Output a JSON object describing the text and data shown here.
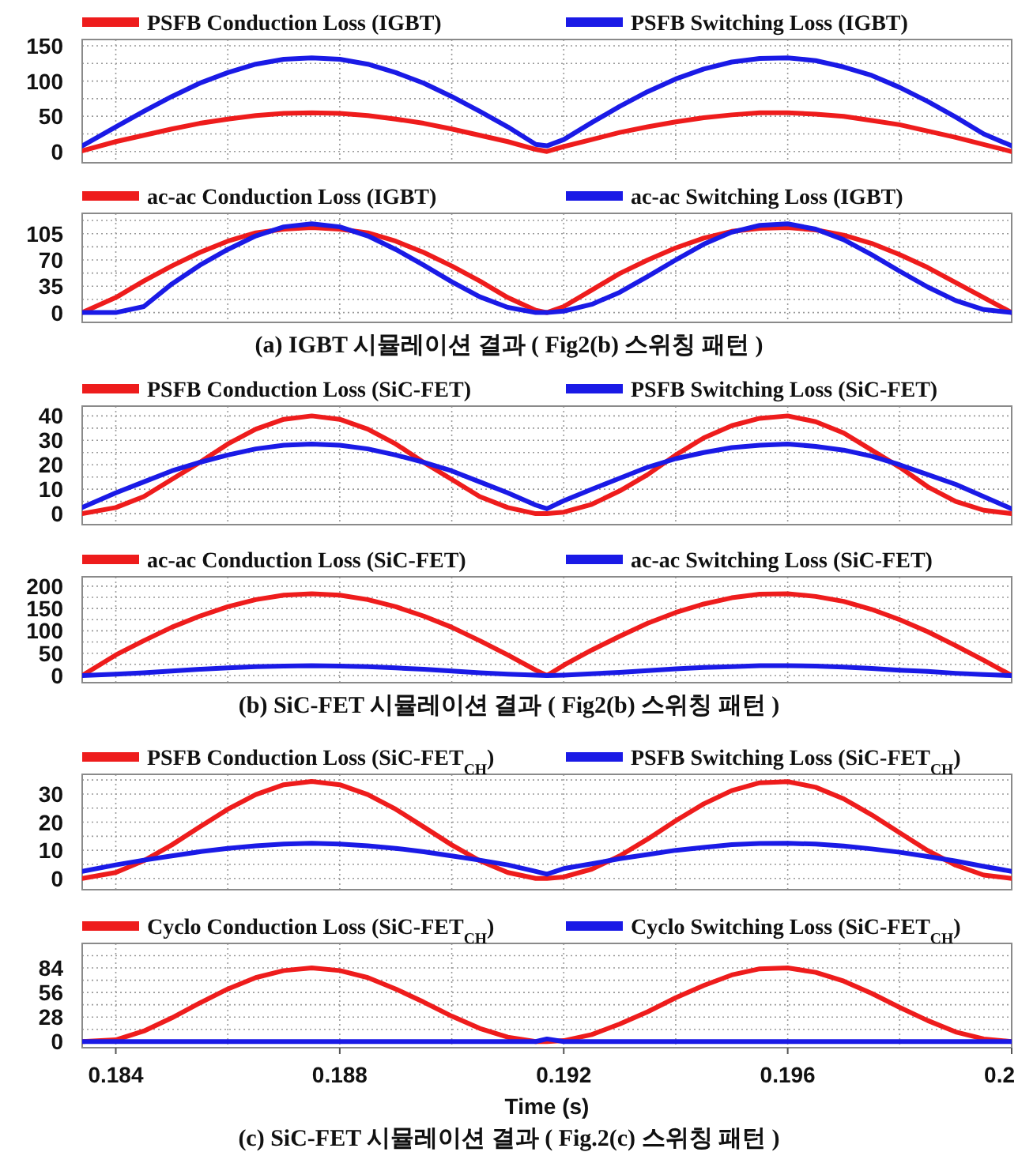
{
  "chart_data": [
    {
      "type": "line",
      "x": [
        0.1834,
        0.184,
        0.1845,
        0.185,
        0.1855,
        0.186,
        0.1865,
        0.187,
        0.1875,
        0.188,
        0.1885,
        0.189,
        0.1895,
        0.19,
        0.1905,
        0.191,
        0.1915,
        0.1917,
        0.192,
        0.1925,
        0.193,
        0.1935,
        0.194,
        0.1945,
        0.195,
        0.1955,
        0.196,
        0.1965,
        0.197,
        0.1975,
        0.198,
        0.1985,
        0.199,
        0.1995,
        0.2
      ],
      "xlim": [
        0.1834,
        0.2
      ],
      "xticks": [
        0.184,
        {
          "value": 0.186,
          "label": null
        },
        0.188,
        {
          "value": 0.19,
          "label": null
        },
        0.192,
        {
          "value": 0.194,
          "label": null
        },
        0.196,
        {
          "value": 0.198,
          "label": null
        },
        0.2
      ],
      "ylim": [
        -16,
        159
      ],
      "yticks": [
        0,
        {
          "value": 25,
          "label": null
        },
        50,
        {
          "value": 75,
          "label": null
        },
        100,
        {
          "value": 125,
          "label": null
        },
        150
      ],
      "grid": true,
      "legend": "top",
      "tick_labels": "y",
      "series": [
        {
          "name": "PSFB Conduction Loss (IGBT)",
          "color": "#ee1c1c",
          "values": [
            1,
            14,
            23,
            32,
            40,
            46,
            51,
            54,
            55,
            54,
            51,
            46,
            40,
            32,
            23,
            14,
            3,
            0,
            7,
            17,
            27,
            35,
            42,
            48,
            52,
            55,
            55,
            53,
            50,
            44,
            38,
            29,
            20,
            10,
            0
          ]
        },
        {
          "name": "PSFB Switching Loss (IGBT)",
          "color": "#1a1ae6",
          "values": [
            8,
            35,
            57,
            78,
            97,
            112,
            124,
            131,
            133,
            131,
            124,
            112,
            97,
            78,
            57,
            35,
            10,
            8,
            17,
            41,
            64,
            85,
            103,
            117,
            127,
            132,
            133,
            129,
            120,
            108,
            91,
            71,
            49,
            25,
            8
          ]
        }
      ]
    },
    {
      "type": "line",
      "x": [
        0.1834,
        0.184,
        0.1845,
        0.185,
        0.1855,
        0.186,
        0.1865,
        0.187,
        0.1875,
        0.188,
        0.1885,
        0.189,
        0.1895,
        0.19,
        0.1905,
        0.191,
        0.1915,
        0.1917,
        0.192,
        0.1925,
        0.193,
        0.1935,
        0.194,
        0.1945,
        0.195,
        0.1955,
        0.196,
        0.1965,
        0.197,
        0.1975,
        0.198,
        0.1985,
        0.199,
        0.1995,
        0.2
      ],
      "xlim": [
        0.1834,
        0.2
      ],
      "xticks": [
        0.184,
        {
          "value": 0.186,
          "label": null
        },
        0.188,
        {
          "value": 0.19,
          "label": null
        },
        0.192,
        {
          "value": 0.194,
          "label": null
        },
        0.196,
        {
          "value": 0.198,
          "label": null
        },
        0.2
      ],
      "ylim": [
        -13,
        132
      ],
      "yticks": [
        0,
        {
          "value": 17.5,
          "label": null
        },
        35,
        {
          "value": 52.5,
          "label": null
        },
        70,
        {
          "value": 87.5,
          "label": null
        },
        105,
        {
          "value": 122.5,
          "label": null
        }
      ],
      "grid": true,
      "legend": "top",
      "tick_labels": "y",
      "annotations": [
        "(a) IGBT 시뮬레이션 결과 ( Fig2(b) 스위칭 패턴 )"
      ],
      "series": [
        {
          "name": "ac-ac Conduction Loss (IGBT)",
          "color": "#ee1c1c",
          "values": [
            0,
            20,
            42,
            62,
            80,
            95,
            106,
            111,
            113,
            111,
            106,
            95,
            80,
            62,
            42,
            20,
            3,
            0,
            8,
            30,
            52,
            70,
            86,
            99,
            108,
            112,
            113,
            110,
            103,
            92,
            77,
            60,
            40,
            20,
            0
          ]
        },
        {
          "name": "ac-ac Switching Loss (IGBT)",
          "color": "#1a1ae6",
          "values": [
            0,
            0,
            8,
            38,
            63,
            84,
            102,
            114,
            118,
            114,
            102,
            84,
            63,
            41,
            21,
            7,
            0,
            0,
            2,
            11,
            27,
            48,
            70,
            91,
            107,
            116,
            118,
            111,
            97,
            77,
            55,
            34,
            16,
            4,
            0
          ]
        }
      ]
    },
    {
      "type": "line",
      "x": [
        0.1834,
        0.184,
        0.1845,
        0.185,
        0.1855,
        0.186,
        0.1865,
        0.187,
        0.1875,
        0.188,
        0.1885,
        0.189,
        0.1895,
        0.19,
        0.1905,
        0.191,
        0.1915,
        0.1917,
        0.192,
        0.1925,
        0.193,
        0.1935,
        0.194,
        0.1945,
        0.195,
        0.1955,
        0.196,
        0.1965,
        0.197,
        0.1975,
        0.198,
        0.1985,
        0.199,
        0.1995,
        0.2
      ],
      "xlim": [
        0.1834,
        0.2
      ],
      "xticks": [
        0.184,
        {
          "value": 0.186,
          "label": null
        },
        0.188,
        {
          "value": 0.19,
          "label": null
        },
        0.192,
        {
          "value": 0.194,
          "label": null
        },
        0.196,
        {
          "value": 0.198,
          "label": null
        },
        0.2
      ],
      "ylim": [
        -4.5,
        44
      ],
      "yticks": [
        0,
        {
          "value": 5,
          "label": null
        },
        10,
        {
          "value": 15,
          "label": null
        },
        20,
        {
          "value": 25,
          "label": null
        },
        30,
        {
          "value": 35,
          "label": null
        },
        40
      ],
      "grid": true,
      "legend": "top",
      "tick_labels": "y",
      "series": [
        {
          "name": "PSFB Conduction Loss (SiC-FET)",
          "color": "#ee1c1c",
          "values": [
            0,
            2.5,
            7,
            14,
            21,
            28.5,
            34.6,
            38.6,
            40,
            38.6,
            34.6,
            28.5,
            21,
            14,
            7,
            2.5,
            0,
            0,
            0.6,
            3.8,
            9.3,
            16,
            24,
            31,
            36,
            39,
            40,
            37.6,
            33,
            26,
            19,
            11,
            5,
            1.4,
            0
          ]
        },
        {
          "name": "PSFB Switching Loss (SiC-FET)",
          "color": "#1a1ae6",
          "values": [
            2.5,
            8.5,
            13,
            17.5,
            21,
            24,
            26.5,
            28,
            28.5,
            28,
            26.5,
            24,
            21,
            17.5,
            13,
            8.5,
            3.5,
            2,
            5.3,
            10,
            14.5,
            19,
            22.5,
            25,
            27,
            28,
            28.5,
            27.5,
            26,
            23.5,
            20,
            16,
            12,
            7,
            2
          ]
        }
      ]
    },
    {
      "type": "line",
      "x": [
        0.1834,
        0.184,
        0.1845,
        0.185,
        0.1855,
        0.186,
        0.1865,
        0.187,
        0.1875,
        0.188,
        0.1885,
        0.189,
        0.1895,
        0.19,
        0.1905,
        0.191,
        0.1915,
        0.1917,
        0.192,
        0.1925,
        0.193,
        0.1935,
        0.194,
        0.1945,
        0.195,
        0.1955,
        0.196,
        0.1965,
        0.197,
        0.1975,
        0.198,
        0.1985,
        0.199,
        0.1995,
        0.2
      ],
      "xlim": [
        0.1834,
        0.2
      ],
      "xticks": [
        0.184,
        {
          "value": 0.186,
          "label": null
        },
        0.188,
        {
          "value": 0.19,
          "label": null
        },
        0.192,
        {
          "value": 0.194,
          "label": null
        },
        0.196,
        {
          "value": 0.198,
          "label": null
        },
        0.2
      ],
      "ylim": [
        -16,
        221
      ],
      "yticks": [
        0,
        {
          "value": 25,
          "label": null
        },
        50,
        {
          "value": 75,
          "label": null
        },
        100,
        {
          "value": 125,
          "label": null
        },
        150,
        {
          "value": 175,
          "label": null
        },
        200
      ],
      "grid": true,
      "legend": "top",
      "tick_labels": "y",
      "annotations": [
        "(b) SiC-FET 시뮬레이션 결과 ( Fig2(b) 스위칭 패턴 )"
      ],
      "series": [
        {
          "name": "ac-ac Conduction Loss (SiC-FET)",
          "color": "#ee1c1c",
          "values": [
            0,
            46,
            78,
            108,
            133,
            154,
            170,
            180,
            183,
            180,
            170,
            154,
            133,
            108,
            78,
            46,
            12,
            0,
            23,
            57,
            88,
            117,
            141,
            160,
            174,
            182,
            183,
            177,
            166,
            148,
            125,
            98,
            67,
            34,
            0
          ]
        },
        {
          "name": "ac-ac Switching Loss (SiC-FET)",
          "color": "#1a1ae6",
          "values": [
            0,
            3,
            6,
            10,
            14,
            17,
            20,
            21,
            22,
            21,
            20,
            17,
            14,
            10,
            6,
            3,
            1,
            0,
            1,
            4,
            7,
            11,
            15,
            18,
            20,
            22,
            22,
            21,
            19,
            16,
            12,
            9,
            5,
            2,
            0
          ]
        }
      ]
    },
    {
      "type": "line",
      "x": [
        0.1834,
        0.184,
        0.1845,
        0.185,
        0.1855,
        0.186,
        0.1865,
        0.187,
        0.1875,
        0.188,
        0.1885,
        0.189,
        0.1895,
        0.19,
        0.1905,
        0.191,
        0.1915,
        0.1917,
        0.192,
        0.1925,
        0.193,
        0.1935,
        0.194,
        0.1945,
        0.195,
        0.1955,
        0.196,
        0.1965,
        0.197,
        0.1975,
        0.198,
        0.1985,
        0.199,
        0.1995,
        0.2
      ],
      "xlim": [
        0.1834,
        0.2
      ],
      "xticks": [
        0.184,
        {
          "value": 0.186,
          "label": null
        },
        0.188,
        {
          "value": 0.19,
          "label": null
        },
        0.192,
        {
          "value": 0.194,
          "label": null
        },
        0.196,
        {
          "value": 0.198,
          "label": null
        },
        0.2
      ],
      "ylim": [
        -4,
        37
      ],
      "yticks": [
        0,
        {
          "value": 5,
          "label": null
        },
        10,
        {
          "value": 15,
          "label": null
        },
        20,
        {
          "value": 25,
          "label": null
        },
        30,
        {
          "value": 35,
          "label": null
        }
      ],
      "grid": true,
      "legend": "top",
      "tick_labels": "y",
      "series": [
        {
          "name": "PSFB Conduction Loss (SiC-FET$_{CH}$)",
          "color": "#ee1c1c",
          "values": [
            0,
            2.1,
            6.3,
            11.9,
            18.3,
            24.6,
            29.8,
            33.3,
            34.5,
            33.3,
            29.8,
            24.6,
            18.3,
            11.9,
            6.3,
            2.1,
            0,
            0,
            0.5,
            3.3,
            8,
            14,
            20.5,
            26.5,
            31.2,
            34,
            34.4,
            32.4,
            28.3,
            22.6,
            16.2,
            9.9,
            4.7,
            1.2,
            0
          ]
        },
        {
          "name": "PSFB Switching Loss (SiC-FET$_{CH}$)",
          "color": "#1a1ae6",
          "values": [
            2.5,
            4.8,
            6.5,
            8,
            9.5,
            10.7,
            11.6,
            12.2,
            12.5,
            12.2,
            11.6,
            10.7,
            9.5,
            8,
            6.5,
            4.8,
            2.5,
            1.5,
            3.5,
            5.2,
            7,
            8.5,
            10,
            11,
            12,
            12.4,
            12.5,
            12.2,
            11.5,
            10.5,
            9.3,
            7.8,
            6.2,
            4.3,
            2.5
          ]
        }
      ]
    },
    {
      "type": "line",
      "x": [
        0.1834,
        0.184,
        0.1845,
        0.185,
        0.1855,
        0.186,
        0.1865,
        0.187,
        0.1875,
        0.188,
        0.1885,
        0.189,
        0.1895,
        0.19,
        0.1905,
        0.191,
        0.1915,
        0.1917,
        0.192,
        0.1925,
        0.193,
        0.1935,
        0.194,
        0.1945,
        0.195,
        0.1955,
        0.196,
        0.1965,
        0.197,
        0.1975,
        0.198,
        0.1985,
        0.199,
        0.1995,
        0.2
      ],
      "xlim": [
        0.1834,
        0.2
      ],
      "xticks": [
        0.184,
        {
          "value": 0.186,
          "label": null
        },
        0.188,
        {
          "value": 0.19,
          "label": null
        },
        0.192,
        {
          "value": 0.194,
          "label": null
        },
        0.196,
        {
          "value": 0.198,
          "label": null
        },
        0.2
      ],
      "ylim": [
        -7,
        112
      ],
      "yticks": [
        0,
        {
          "value": 14,
          "label": null
        },
        28,
        {
          "value": 42,
          "label": null
        },
        56,
        {
          "value": 70,
          "label": null
        },
        84,
        {
          "value": 98,
          "label": null
        }
      ],
      "grid": true,
      "legend": "top",
      "xlabel": "Time (s)",
      "annotations": [
        "(c) SiC-FET 시뮬레이션 결과 ( Fig.2(c) 스위칭 패턴 )"
      ],
      "series": [
        {
          "name": "Cyclo Conduction Loss (SiC-FET$_{CH}$)",
          "color": "#ee1c1c",
          "values": [
            0,
            2,
            12,
            27,
            44,
            60,
            73,
            81,
            84,
            81,
            73,
            60,
            45,
            29,
            15,
            5,
            0,
            0,
            1,
            8,
            20,
            34,
            50,
            64,
            76,
            83,
            84,
            79,
            69,
            55,
            39,
            24,
            11,
            3,
            0
          ]
        },
        {
          "name": "Cyclo Switching Loss (SiC-FET$_{CH}$)",
          "color": "#1a1ae6",
          "values": [
            0,
            0,
            0,
            0,
            0,
            0,
            0,
            0,
            0,
            0,
            0,
            0,
            0,
            0,
            0,
            0,
            0,
            3,
            0,
            0,
            0,
            0,
            0,
            0,
            0,
            0,
            0,
            0,
            0,
            0,
            0,
            0,
            0,
            0,
            0
          ]
        }
      ]
    }
  ]
}
